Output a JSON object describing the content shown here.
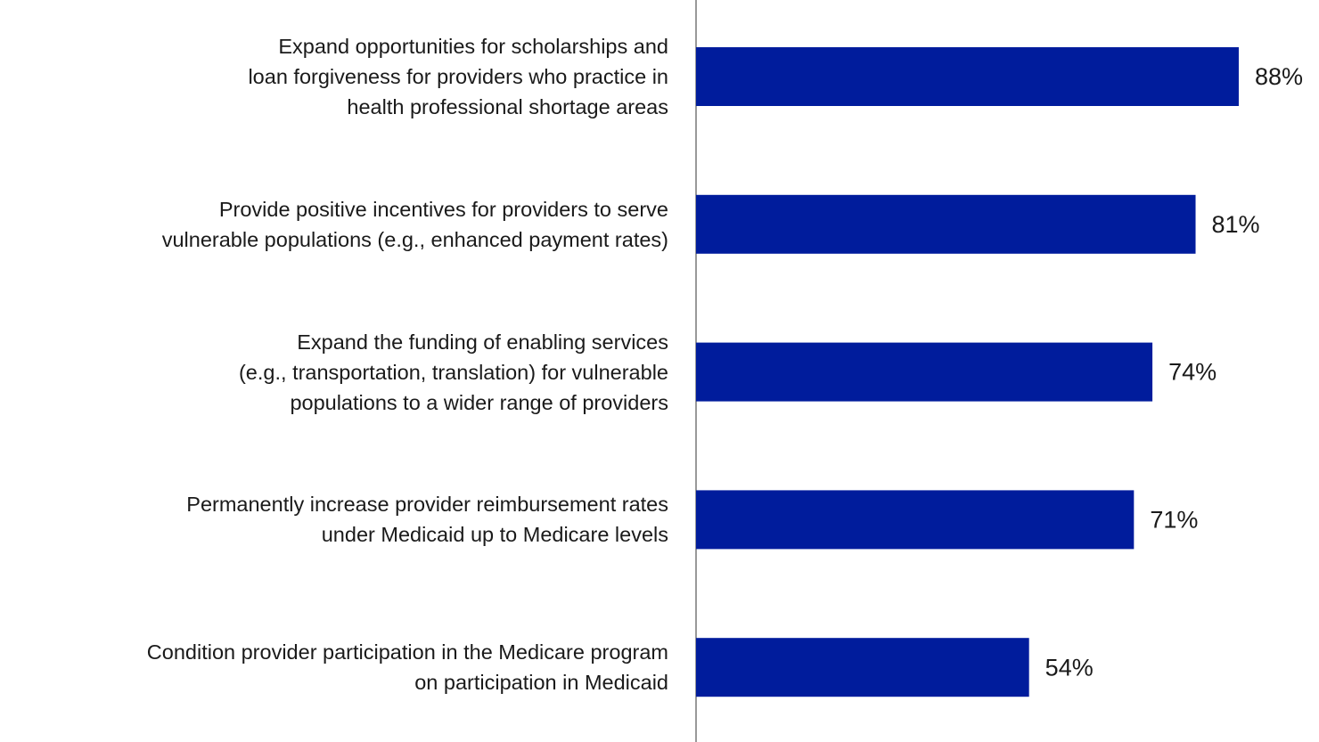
{
  "chart_data": {
    "type": "bar",
    "orientation": "horizontal",
    "categories": [
      "Expand opportunities for scholarships and\nloan forgiveness for providers who practice in\nhealth professional shortage areas",
      "Provide positive incentives for providers to serve\nvulnerable populations (e.g., enhanced payment rates)",
      "Expand the funding of enabling services\n(e.g., transportation, translation) for vulnerable\npopulations to a wider range of providers",
      "Permanently increase provider reimbursement rates\nunder Medicaid up to Medicare levels",
      "Condition provider participation in the Medicare program\non participation in Medicaid"
    ],
    "values": [
      88,
      81,
      74,
      71,
      54
    ],
    "value_labels": [
      "88%",
      "81%",
      "74%",
      "71%",
      "54%"
    ],
    "color": "#001c9c",
    "xlim": [
      0,
      100
    ]
  }
}
